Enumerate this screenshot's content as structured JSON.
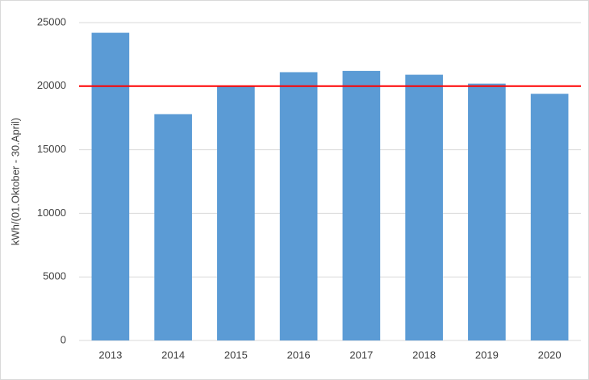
{
  "chart_data": {
    "type": "bar",
    "y_label": "kWh/(01.Oktober - 30.April)",
    "categories": [
      "2013",
      "2014",
      "2015",
      "2016",
      "2017",
      "2018",
      "2019",
      "2020"
    ],
    "values": [
      24200,
      17800,
      20000,
      21100,
      21200,
      20900,
      20200,
      19400
    ],
    "color": "#5b9bd5",
    "reference_line": {
      "value": 20000,
      "color": "#ff0000"
    },
    "ylim": [
      0,
      25000
    ],
    "yticks": [
      0,
      5000,
      10000,
      15000,
      20000,
      25000
    ],
    "grid": true
  }
}
